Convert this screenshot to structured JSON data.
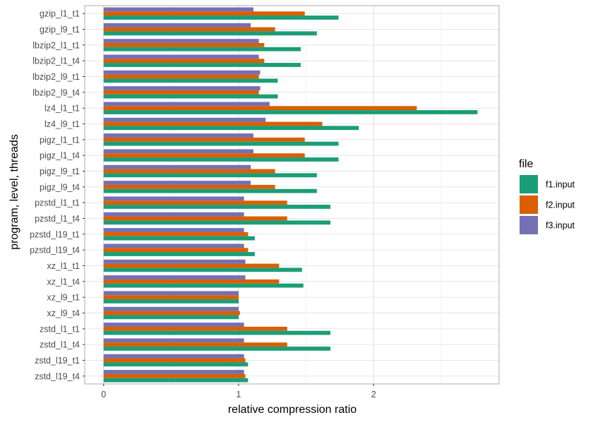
{
  "chart_data": {
    "type": "bar",
    "orientation": "horizontal",
    "title": "",
    "xlabel": "relative compression ratio",
    "ylabel": "program, level, threads",
    "xlim": [
      -0.14,
      2.93
    ],
    "x_ticks": [
      0,
      1,
      2
    ],
    "grid": true,
    "legend_position": "right",
    "legend_title": "file",
    "categories": [
      "gzip_l1_t1",
      "gzip_l9_t1",
      "lbzip2_l1_t1",
      "lbzip2_l1_t4",
      "lbzip2_l9_t1",
      "lbzip2_l9_t4",
      "lz4_l1_t1",
      "lz4_l9_t1",
      "pigz_l1_t1",
      "pigz_l1_t4",
      "pigz_l9_t1",
      "pigz_l9_t4",
      "pzstd_l1_t1",
      "pzstd_l1_t4",
      "pzstd_l19_t1",
      "pzstd_l19_t4",
      "xz_l1_t1",
      "xz_l1_t4",
      "xz_l9_t1",
      "xz_l9_t4",
      "zstd_l1_t1",
      "zstd_l1_t4",
      "zstd_l19_t1",
      "zstd_l19_t4"
    ],
    "series": [
      {
        "name": "f1.input",
        "color": "#1b9e77",
        "values": [
          1.74,
          1.58,
          1.46,
          1.46,
          1.29,
          1.29,
          2.77,
          1.89,
          1.74,
          1.74,
          1.58,
          1.58,
          1.68,
          1.68,
          1.12,
          1.12,
          1.47,
          1.48,
          1.0,
          1.0,
          1.68,
          1.68,
          1.07,
          1.07
        ]
      },
      {
        "name": "f2.input",
        "color": "#d95f02",
        "values": [
          1.49,
          1.27,
          1.19,
          1.19,
          1.15,
          1.15,
          2.32,
          1.62,
          1.49,
          1.49,
          1.27,
          1.27,
          1.36,
          1.36,
          1.07,
          1.07,
          1.3,
          1.3,
          1.0,
          1.01,
          1.36,
          1.36,
          1.05,
          1.05
        ]
      },
      {
        "name": "f3.input",
        "color": "#7570b3",
        "values": [
          1.11,
          1.09,
          1.15,
          1.15,
          1.16,
          1.16,
          1.23,
          1.2,
          1.11,
          1.11,
          1.09,
          1.09,
          1.04,
          1.04,
          1.04,
          1.04,
          1.05,
          1.05,
          1.0,
          1.0,
          1.04,
          1.04,
          1.04,
          1.04
        ]
      }
    ]
  }
}
